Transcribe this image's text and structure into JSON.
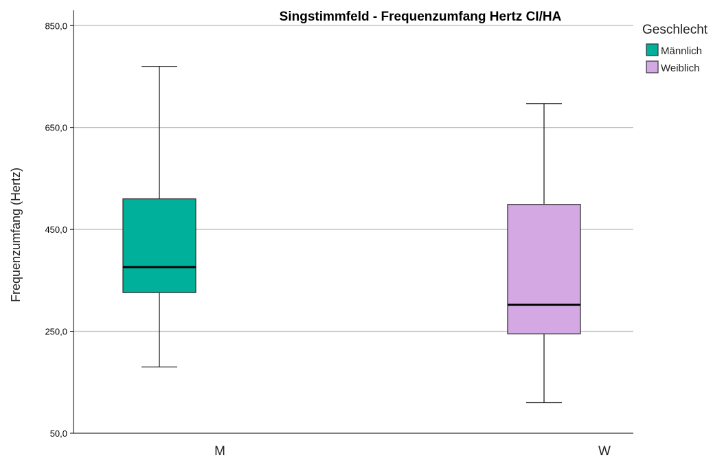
{
  "chart_data": {
    "type": "boxplot",
    "title": "Singstimmfeld - Frequenzumfang Hertz CI/HA",
    "xlabel": "",
    "ylabel": "Frequenzumfang (Hertz)",
    "ylim": [
      50,
      880
    ],
    "yticks": [
      50,
      250,
      450,
      650,
      850
    ],
    "ytick_labels": [
      "50,0",
      "250,0",
      "450,0",
      "650,0",
      "850,0"
    ],
    "grid": true,
    "categories": [
      "M",
      "W"
    ],
    "boxes": [
      {
        "category": "M",
        "whisker_low": 180,
        "q1": 326,
        "median": 376,
        "q3": 510,
        "whisker_high": 770,
        "color": "#00b09b"
      },
      {
        "category": "W",
        "whisker_low": 110,
        "q1": 245,
        "median": 302,
        "q3": 499,
        "whisker_high": 697,
        "color": "#d3a8e3"
      }
    ],
    "legend": {
      "title": "Geschlecht",
      "placement": "top-right",
      "items": [
        {
          "label": "Männlich",
          "color": "#00b09b"
        },
        {
          "label": "Weiblich",
          "color": "#d3a8e3"
        }
      ]
    }
  }
}
